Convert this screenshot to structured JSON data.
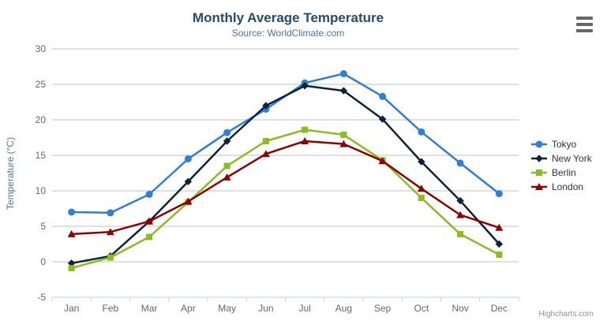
{
  "title": "Monthly Average Temperature",
  "subtitle": "Source: WorldClimate.com",
  "y_axis_title": "Temperature (°C)",
  "credits": "Highcharts.com",
  "menu_icon": "hamburger-icon",
  "palette": {
    "title_color": "#274b6d",
    "subtitle_color": "#4d759e",
    "axis_label_color": "#666666",
    "grid_color": "#C0C0C0",
    "axis_line_color": "#C0D0E0",
    "legend_text_color": "#333333",
    "credits_color": "#909090"
  },
  "chart_data": {
    "type": "line",
    "title": "Monthly Average Temperature",
    "subtitle": "Source: WorldClimate.com",
    "categories": [
      "Jan",
      "Feb",
      "Mar",
      "Apr",
      "May",
      "Jun",
      "Jul",
      "Aug",
      "Sep",
      "Oct",
      "Nov",
      "Dec"
    ],
    "series": [
      {
        "name": "Tokyo",
        "color": "#2f7ed8",
        "marker": "circle",
        "values": [
          7.0,
          6.9,
          9.5,
          14.5,
          18.2,
          21.5,
          25.2,
          26.5,
          23.3,
          18.3,
          13.9,
          9.6
        ]
      },
      {
        "name": "New York",
        "color": "#0d233a",
        "marker": "diamond",
        "values": [
          -0.2,
          0.8,
          5.7,
          11.3,
          17.0,
          22.0,
          24.8,
          24.1,
          20.1,
          14.1,
          8.6,
          2.5
        ]
      },
      {
        "name": "Berlin",
        "color": "#8bbc21",
        "marker": "square",
        "values": [
          -0.9,
          0.6,
          3.5,
          8.4,
          13.5,
          17.0,
          18.6,
          17.9,
          14.3,
          9.0,
          3.9,
          1.0
        ]
      },
      {
        "name": "London",
        "color": "#910000",
        "marker": "triangle",
        "values": [
          3.9,
          4.2,
          5.7,
          8.5,
          11.9,
          15.2,
          17.0,
          16.6,
          14.2,
          10.3,
          6.6,
          4.8
        ]
      }
    ],
    "xlabel": "",
    "ylabel": "Temperature (°C)",
    "ylim": [
      -5,
      30
    ],
    "ytick_step": 5,
    "grid": true,
    "legend_position": "right"
  }
}
